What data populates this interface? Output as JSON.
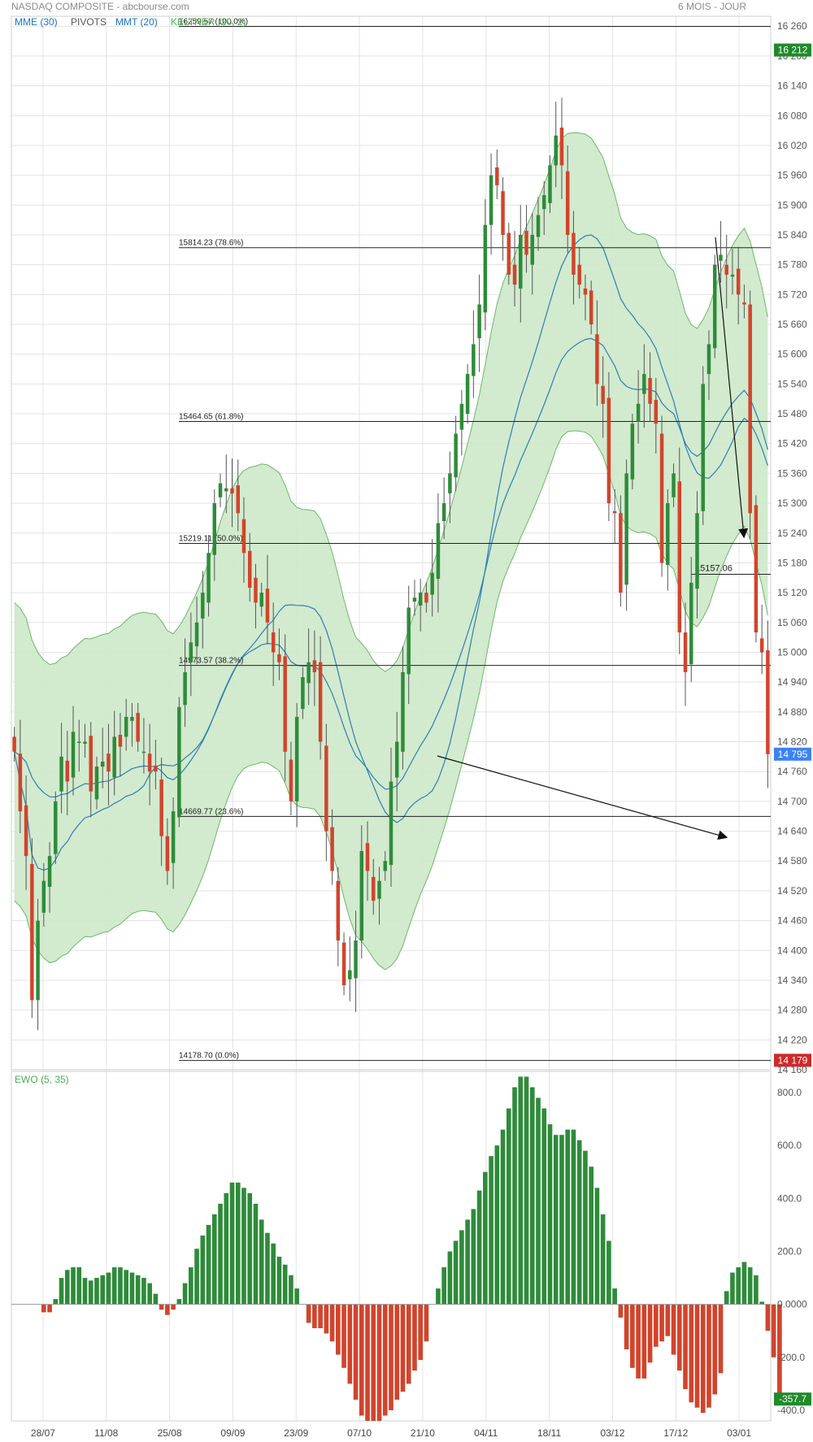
{
  "header": {
    "title": "NASDAQ COMPOSITE - abcbourse.com",
    "period": "6 MOIS - JOUR"
  },
  "indicators": [
    {
      "label": "MME (30)",
      "color": "#1a73c9"
    },
    {
      "label": "PIVOTS",
      "color": "#555555"
    },
    {
      "label": "MMT (20)",
      "color": "#1a73c9"
    },
    {
      "label": "KELTNER (20, 2)",
      "color": "#4caf50"
    }
  ],
  "colors": {
    "up": "#2e8b3a",
    "down": "#d1442c",
    "band_fill": "#cde8c9",
    "band_line": "#6ab96a",
    "ma_line": "#2e7fb0",
    "grid": "#e3e3e3",
    "price_badge_last": "#3b82f6",
    "price_badge_high": "#1f8a2a",
    "price_badge_low": "#cc2a2a",
    "ewo_badge": "#1f8a2a"
  },
  "chart_data": [
    {
      "type": "candlestick",
      "title": "NASDAQ COMPOSITE",
      "ylim": [
        14160,
        16280
      ],
      "y_ticks": [
        "16 260",
        "16 200",
        "16 140",
        "16 080",
        "16 020",
        "15 960",
        "15 900",
        "15 840",
        "15 780",
        "15 720",
        "15 660",
        "15 600",
        "15 540",
        "15 480",
        "15 420",
        "15 360",
        "15 300",
        "15 240",
        "15 180",
        "15 120",
        "15 060",
        "15 000",
        "14 940",
        "14 880",
        "14 820",
        "14 760",
        "14 700",
        "14 640",
        "14 580",
        "14 520",
        "14 460",
        "14 400",
        "14 340",
        "14 280",
        "14 220",
        "14 160"
      ],
      "x_ticks": [
        "28/07",
        "11/08",
        "25/08",
        "09/09",
        "23/09",
        "07/10",
        "21/10",
        "04/11",
        "18/11",
        "03/12",
        "17/12",
        "03/01"
      ],
      "closes": [
        14800,
        14680,
        14590,
        14300,
        14460,
        14540,
        14590,
        14700,
        14790,
        14740,
        14840,
        14820,
        14820,
        14720,
        14770,
        14780,
        14760,
        14830,
        14810,
        14870,
        14870,
        14820,
        14800,
        14760,
        14760,
        14630,
        14560,
        14680,
        14890,
        14960,
        15020,
        15060,
        15120,
        15200,
        15300,
        15340,
        15330,
        15320,
        15280,
        15200,
        15130,
        15100,
        15120,
        15060,
        15000,
        14980,
        14800,
        14700,
        14870,
        14950,
        14980,
        14960,
        14820,
        14640,
        14560,
        14420,
        14330,
        14360,
        14420,
        14600,
        14560,
        14500,
        14540,
        14580,
        14740,
        14820,
        14960,
        15090,
        15110,
        15120,
        15100,
        15160,
        15260,
        15300,
        15360,
        15440,
        15500,
        15560,
        15620,
        15700,
        15860,
        15960,
        15940,
        15840,
        15760,
        15740,
        15840,
        15800,
        15840,
        15880,
        15920,
        15980,
        16040,
        15980,
        15840,
        15760,
        15740,
        15720,
        15660,
        15540,
        15500,
        15300,
        15280,
        15120,
        15360,
        15460,
        15500,
        15560,
        15500,
        15460,
        15180,
        15300,
        15360,
        15040,
        14960,
        15140,
        15280,
        15540,
        15620,
        15780,
        15800,
        15760,
        15760,
        15720,
        15700,
        15280,
        15040,
        15000,
        14795
      ],
      "series": [
        {
          "name": "MME (30)"
        },
        {
          "name": "MMT (20)"
        },
        {
          "name": "KELTNER (20, 2)"
        }
      ],
      "fib_levels": [
        {
          "label": "16259.57  (100.0%)",
          "value": 16259.57
        },
        {
          "label": "15814.23  (78.6%)",
          "value": 15814.23
        },
        {
          "label": "15464.65  (61.8%)",
          "value": 15464.65
        },
        {
          "label": "15219.11  (50.0%)",
          "value": 15219.11
        },
        {
          "label": "14973.57  (38.2%)",
          "value": 14973.57
        },
        {
          "label": "14669.77  (23.6%)",
          "value": 14669.77
        },
        {
          "label": "14178.70  (0.0%)",
          "value": 14178.7
        }
      ],
      "pivot_label": {
        "text": "15157.06",
        "value": 15157.06
      },
      "price_badges": [
        {
          "text": "16 212",
          "value": 16212,
          "kind": "high"
        },
        {
          "text": "14 795",
          "value": 14795,
          "kind": "last"
        },
        {
          "text": "14 179",
          "value": 14179,
          "kind": "low"
        }
      ]
    },
    {
      "type": "bar",
      "title": "EWO (5, 35)",
      "ylim": [
        -440,
        880
      ],
      "y_ticks": [
        "800.0",
        "600.0",
        "400.0",
        "200.0",
        "0.0000",
        "-200.0",
        "-400.0"
      ],
      "values": [
        0,
        0,
        0,
        0,
        0,
        -30,
        -30,
        20,
        100,
        130,
        140,
        140,
        100,
        90,
        100,
        110,
        120,
        140,
        140,
        130,
        120,
        110,
        100,
        80,
        40,
        -20,
        -40,
        -20,
        20,
        80,
        140,
        210,
        260,
        300,
        340,
        380,
        420,
        460,
        460,
        440,
        420,
        380,
        320,
        270,
        230,
        180,
        150,
        110,
        60,
        0,
        -70,
        -90,
        -90,
        -110,
        -140,
        -190,
        -240,
        -300,
        -360,
        -420,
        -440,
        -440,
        -440,
        -420,
        -400,
        -360,
        -330,
        -300,
        -250,
        -210,
        -140,
        0,
        60,
        140,
        200,
        240,
        280,
        320,
        360,
        430,
        500,
        560,
        600,
        660,
        740,
        820,
        860,
        860,
        820,
        780,
        740,
        680,
        640,
        640,
        660,
        660,
        620,
        580,
        520,
        440,
        340,
        240,
        60,
        -50,
        -170,
        -240,
        -280,
        -280,
        -220,
        -160,
        -140,
        -120,
        -190,
        -250,
        -320,
        -370,
        -390,
        -410,
        -390,
        -340,
        -260,
        50,
        120,
        140,
        160,
        140,
        110,
        10,
        -100,
        -200,
        -357.7
      ],
      "value_badge": {
        "text": "-357.7",
        "value": -357.7
      }
    }
  ]
}
